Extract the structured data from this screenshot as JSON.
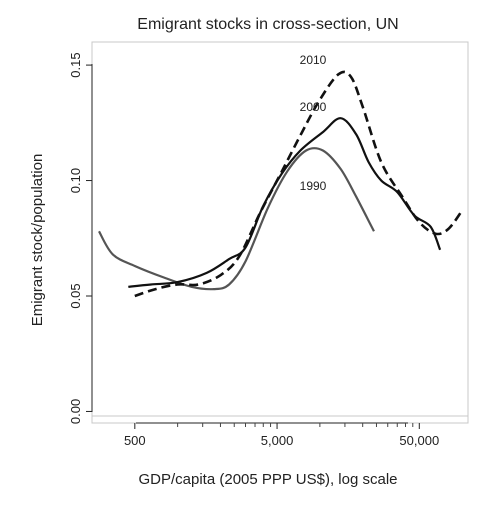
{
  "chart_data": {
    "type": "line",
    "title": "Emigrant stocks in cross-section, UN",
    "xlabel": "GDP/capita (2005 PPP US$), log scale",
    "ylabel": "Emigrant stock/population",
    "x_scale": "log",
    "xlim": [
      250,
      110000
    ],
    "ylim": [
      -0.005,
      0.16
    ],
    "x_ticks": [
      500,
      5000,
      50000
    ],
    "x_tick_labels": [
      "500",
      "5,000",
      "50,000"
    ],
    "y_ticks": [
      0.0,
      0.05,
      0.1,
      0.15
    ],
    "y_tick_labels": [
      "0.00",
      "0.05",
      "0.10",
      "0.15"
    ],
    "grid": false,
    "legend": "none",
    "series": [
      {
        "name": "1990",
        "color": "#555555",
        "style": "solid",
        "x": [
          280,
          350,
          500,
          800,
          1250,
          1800,
          2300,
          3000,
          4300,
          5900,
          8000,
          10500,
          14000,
          18000,
          24000
        ],
        "y": [
          0.078,
          0.068,
          0.063,
          0.058,
          0.054,
          0.053,
          0.055,
          0.065,
          0.088,
          0.104,
          0.113,
          0.113,
          0.105,
          0.093,
          0.078
        ]
      },
      {
        "name": "2000",
        "color": "#111111",
        "style": "solid",
        "x": [
          450,
          650,
          1000,
          1600,
          2300,
          3000,
          4000,
          5400,
          7300,
          10500,
          14000,
          18000,
          22000,
          27000,
          35000,
          46000,
          60000,
          70000
        ],
        "y": [
          0.054,
          0.055,
          0.056,
          0.06,
          0.066,
          0.071,
          0.089,
          0.103,
          0.113,
          0.121,
          0.127,
          0.12,
          0.108,
          0.1,
          0.095,
          0.085,
          0.08,
          0.07
        ]
      },
      {
        "name": "2010",
        "color": "#111111",
        "style": "dashed",
        "x": [
          500,
          700,
          1000,
          1400,
          2000,
          2700,
          3800,
          5300,
          7500,
          10000,
          13500,
          16500,
          20000,
          27000,
          38000,
          50000,
          65000,
          80000,
          100000
        ],
        "y": [
          0.05,
          0.053,
          0.055,
          0.055,
          0.059,
          0.067,
          0.086,
          0.103,
          0.121,
          0.135,
          0.146,
          0.145,
          0.132,
          0.108,
          0.093,
          0.082,
          0.077,
          0.079,
          0.087
        ]
      }
    ],
    "annotations": [
      "2010",
      "2000",
      "1990"
    ]
  }
}
